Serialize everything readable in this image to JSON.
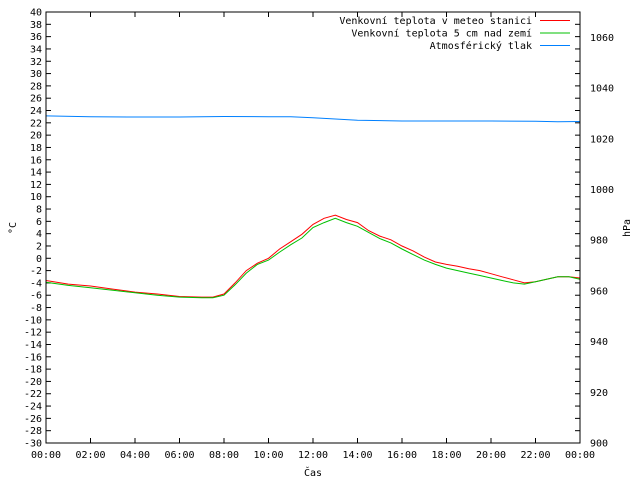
{
  "chart_data": {
    "type": "line",
    "xlabel": "Čas",
    "ylabel_left": "°C",
    "ylabel_right": "hPa",
    "x_ticks": [
      "00:00",
      "02:00",
      "04:00",
      "06:00",
      "08:00",
      "10:00",
      "12:00",
      "14:00",
      "16:00",
      "18:00",
      "20:00",
      "22:00",
      "00:00"
    ],
    "x_range_hours": [
      0,
      24
    ],
    "y_left_range": [
      -30,
      40
    ],
    "y_left_step": 2,
    "y_right_range": [
      900,
      1070
    ],
    "y_right_ticks": [
      900,
      920,
      940,
      960,
      980,
      1000,
      1020,
      1040,
      1060
    ],
    "grid": false,
    "legend_position": "top-right",
    "series": [
      {
        "name": "Venkovní teplota v meteo stanici",
        "color": "#ff0000",
        "axis": "left",
        "x_hours": [
          0,
          1,
          2,
          3,
          4,
          5,
          6,
          7,
          7.5,
          8,
          8.5,
          9,
          9.5,
          10,
          10.5,
          11,
          11.5,
          12,
          12.5,
          13,
          13.5,
          14,
          14.5,
          15,
          15.5,
          16,
          16.5,
          17,
          17.5,
          18,
          18.5,
          19,
          19.5,
          20,
          20.5,
          21,
          21.5,
          22,
          22.5,
          23,
          23.5,
          24
        ],
        "values": [
          -3.6,
          -4.2,
          -4.5,
          -5.0,
          -5.5,
          -5.8,
          -6.2,
          -6.3,
          -6.3,
          -5.8,
          -4.0,
          -2.0,
          -0.8,
          0.0,
          1.5,
          2.7,
          3.9,
          5.5,
          6.5,
          7.0,
          6.3,
          5.8,
          4.5,
          3.6,
          3.0,
          2.0,
          1.2,
          0.2,
          -0.6,
          -1.0,
          -1.3,
          -1.7,
          -2.0,
          -2.5,
          -3.0,
          -3.5,
          -4.0,
          -3.8,
          -3.4,
          -3.0,
          -3.0,
          -3.2
        ]
      },
      {
        "name": "Venkovní teplota 5 cm nad zemí",
        "color": "#00c000",
        "axis": "left",
        "x_hours": [
          0,
          1,
          2,
          3,
          4,
          5,
          6,
          7,
          7.5,
          8,
          8.5,
          9,
          9.5,
          10,
          10.5,
          11,
          11.5,
          12,
          12.5,
          13,
          13.5,
          14,
          14.5,
          15,
          15.5,
          16,
          16.5,
          17,
          17.5,
          18,
          18.5,
          19,
          19.5,
          20,
          20.5,
          21,
          21.5,
          22,
          22.5,
          23,
          23.5,
          24
        ],
        "values": [
          -3.9,
          -4.4,
          -4.8,
          -5.2,
          -5.6,
          -6.0,
          -6.3,
          -6.4,
          -6.4,
          -6.0,
          -4.3,
          -2.4,
          -1.0,
          -0.3,
          1.0,
          2.2,
          3.3,
          5.0,
          5.8,
          6.5,
          5.8,
          5.2,
          4.2,
          3.2,
          2.5,
          1.5,
          0.6,
          -0.3,
          -1.0,
          -1.6,
          -2.0,
          -2.4,
          -2.8,
          -3.2,
          -3.6,
          -4.0,
          -4.2,
          -3.8,
          -3.4,
          -3.0,
          -3.0,
          -3.4
        ]
      },
      {
        "name": "Atmosférický tlak",
        "color": "#0080ff",
        "axis": "right",
        "x_hours": [
          0,
          2,
          4,
          6,
          8,
          10,
          11,
          12,
          13,
          14,
          16,
          18,
          20,
          22,
          23,
          24
        ],
        "values": [
          1029.0,
          1028.7,
          1028.6,
          1028.6,
          1028.8,
          1028.7,
          1028.7,
          1028.3,
          1027.8,
          1027.3,
          1027.0,
          1027.0,
          1027.0,
          1026.9,
          1026.7,
          1026.8
        ]
      }
    ]
  }
}
